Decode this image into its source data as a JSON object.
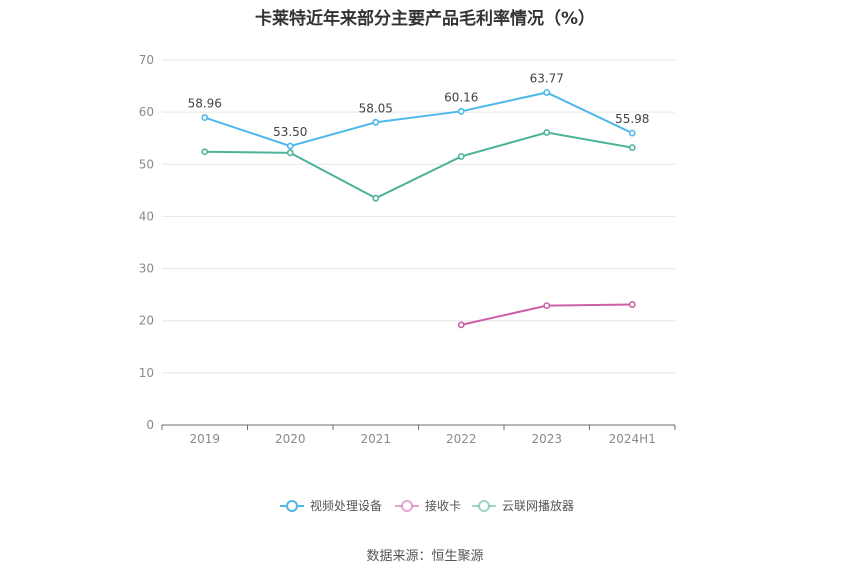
{
  "title": "卡莱特近年来部分主要产品毛利率情况（%）",
  "source": "数据来源：恒生聚源",
  "chart_data": {
    "type": "line",
    "title": "卡莱特近年来部分主要产品毛利率情况（%）",
    "categories": [
      "2019",
      "2020",
      "2021",
      "2022",
      "2023",
      "2024H1"
    ],
    "ylim": [
      0,
      70
    ],
    "yticks": [
      0,
      10,
      20,
      30,
      40,
      50,
      60,
      70
    ],
    "grid": true,
    "legend_position": "bottom",
    "series": [
      {
        "name": "视频处理设备",
        "color": "#4db8ea",
        "values": [
          58.96,
          53.5,
          58.05,
          60.16,
          63.77,
          55.98
        ],
        "labels": [
          "58.96",
          "53.50",
          "58.05",
          "60.16",
          "63.77",
          "55.98"
        ]
      },
      {
        "name": "接收卡",
        "color": "#cc5fa8",
        "values": [
          null,
          null,
          null,
          19.2,
          22.9,
          23.1
        ],
        "labels": null
      },
      {
        "name": "云联网播放器",
        "color": "#4cb39a",
        "values": [
          52.4,
          52.2,
          43.5,
          51.5,
          56.1,
          53.2
        ],
        "labels": null
      }
    ]
  }
}
